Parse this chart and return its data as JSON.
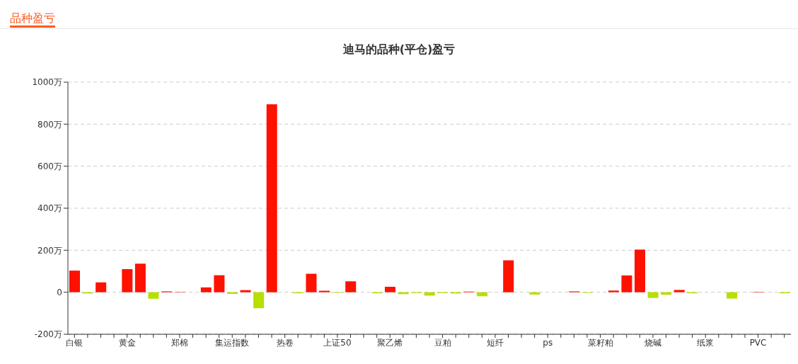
{
  "chart_data": {
    "type": "bar",
    "title": "迪马的品种(平仓)盈亏",
    "annotations": [
      "品种盈亏"
    ],
    "categories": [
      "白银",
      null,
      null,
      null,
      "黄金",
      null,
      null,
      null,
      "郑棉",
      null,
      null,
      null,
      "集运指数",
      null,
      null,
      null,
      "热卷",
      null,
      null,
      null,
      "上证50",
      null,
      null,
      null,
      "聚乙烯",
      null,
      null,
      null,
      "豆粕",
      null,
      null,
      null,
      "短纤",
      null,
      null,
      null,
      "ps",
      null,
      null,
      null,
      "菜籽粕",
      null,
      null,
      null,
      "烧碱",
      null,
      null,
      null,
      "纸浆",
      null,
      null,
      null,
      "PVC",
      null,
      null
    ],
    "values": [
      103,
      -6,
      47,
      0,
      110,
      136,
      -31,
      4,
      1,
      0,
      23,
      81,
      -8,
      10,
      -76,
      895,
      0,
      -5,
      88,
      7,
      -3,
      52,
      0,
      -5,
      26,
      -9,
      -4,
      -16,
      -4,
      -6,
      3,
      -19,
      0,
      152,
      0,
      -11,
      0,
      0,
      4,
      -3,
      null,
      8,
      80,
      203,
      -27,
      -12,
      11,
      -5,
      null,
      0,
      -30,
      null,
      2,
      0,
      -5
    ],
    "colors": [
      "#ff1100",
      "#b5e000",
      "#ff1100",
      "#ff1100",
      "#ff1100",
      "#ff1100",
      "#b5e000",
      "#ff1100",
      "#ff1100",
      "#ff1100",
      "#ff1100",
      "#ff1100",
      "#b5e000",
      "#ff1100",
      "#b5e000",
      "#ff1100",
      "#ff1100",
      "#b5e000",
      "#ff1100",
      "#ff1100",
      "#b5e000",
      "#ff1100",
      "#ff1100",
      "#b5e000",
      "#ff1100",
      "#b5e000",
      "#b5e000",
      "#b5e000",
      "#b5e000",
      "#b5e000",
      "#ff1100",
      "#b5e000",
      "#ff1100",
      "#ff1100",
      "#ff1100",
      "#b5e000",
      "#ff1100",
      "#ff1100",
      "#ff1100",
      "#b5e000",
      "#ff1100",
      "#ff1100",
      "#ff1100",
      "#ff1100",
      "#b5e000",
      "#b5e000",
      "#ff1100",
      "#b5e000",
      "#ff1100",
      "#ff1100",
      "#b5e000",
      "#b5e000",
      "#ff1100",
      "#ff1100",
      "#b5e000"
    ],
    "ylim": [
      -200,
      1000
    ],
    "yticks": [
      {
        "value": -200,
        "label": "-200万"
      },
      {
        "value": 0,
        "label": "0"
      },
      {
        "value": 200,
        "label": "200万"
      },
      {
        "value": 400,
        "label": "400万"
      },
      {
        "value": 600,
        "label": "600万"
      },
      {
        "value": 800,
        "label": "800万"
      },
      {
        "value": 1000,
        "label": "1000万"
      }
    ],
    "grid": "y",
    "legend": false
  }
}
